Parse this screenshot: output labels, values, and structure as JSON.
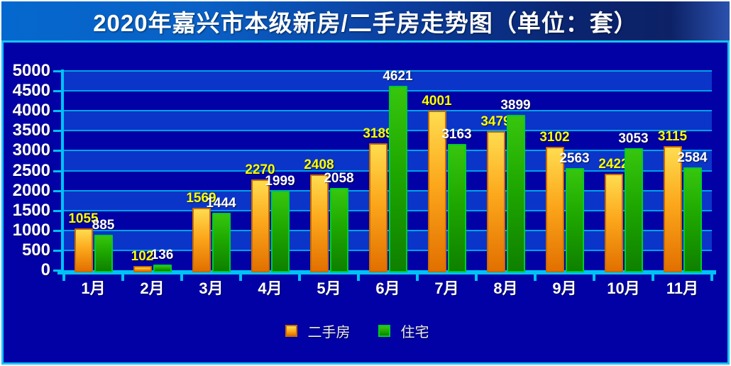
{
  "title": "2020年嘉兴市本级新房/二手房走势图（单位：套）",
  "chart_data": {
    "type": "bar",
    "title": "2020年嘉兴市本级新房/二手房走势图（单位：套）",
    "unit": "套",
    "categories": [
      "1月",
      "2月",
      "3月",
      "4月",
      "5月",
      "6月",
      "7月",
      "8月",
      "9月",
      "10月",
      "11月"
    ],
    "series": [
      {
        "key": "secondhand-homes",
        "name": "二手房",
        "values": [
          1055,
          102,
          1569,
          2270,
          2408,
          3189,
          4001,
          3479,
          3102,
          2422,
          3115
        ],
        "label_color": "#FFFF00",
        "fill_top": "#FFDC4F",
        "fill_mid": "#FCA81C",
        "fill_bottom": "#E27000",
        "border": "#C86A00"
      },
      {
        "key": "residential",
        "name": "住宅",
        "values": [
          885,
          136,
          1444,
          1999,
          2058,
          4621,
          3163,
          3899,
          2563,
          3053,
          2584
        ],
        "label_color": "#FFFFFF",
        "fill_top": "#37C60E",
        "fill_mid": "#1FA800",
        "fill_bottom": "#0E8000",
        "border": "#00CC29"
      }
    ],
    "ylim": [
      0,
      5000
    ],
    "ytick_step": 500,
    "ytick_labels": [
      "0",
      "500",
      "1000",
      "1500",
      "2000",
      "2500",
      "3000",
      "3500",
      "4000",
      "4500",
      "5000"
    ],
    "grid": true,
    "legend_position": "bottom"
  },
  "ui": {
    "panel_bg": "#0101A5",
    "band_light": "#0B35C8",
    "gridline_color": "#00A2E8",
    "axis_color": "#00C2F5",
    "panel_border": "#16C3F6",
    "title_text_color": "#FFFFFF",
    "axis_label_color": "#FFFFFF"
  }
}
